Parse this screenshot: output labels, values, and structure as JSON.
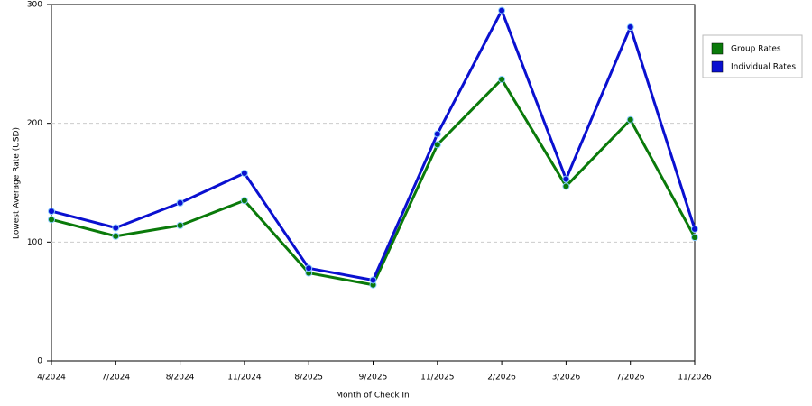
{
  "chart_data": {
    "type": "line",
    "x_label": "Month of Check In",
    "y_label": "Lowest Average Rate (USD)",
    "categories": [
      "4/2024",
      "7/2024",
      "8/2024",
      "11/2024",
      "8/2025",
      "9/2025",
      "11/2025",
      "2/2026",
      "3/2026",
      "7/2026",
      "11/2026"
    ],
    "series": [
      {
        "name": "Group Rates",
        "color": "#0a7a0a",
        "values": [
          119,
          105,
          114,
          135,
          74,
          64,
          182,
          237,
          147,
          203,
          104
        ]
      },
      {
        "name": "Individual Rates",
        "color": "#0a10d0",
        "values": [
          126,
          112,
          133,
          158,
          78,
          68,
          191,
          295,
          153,
          281,
          111
        ]
      }
    ],
    "ylim": [
      0,
      300
    ],
    "yticks": [
      0,
      100,
      200,
      300
    ],
    "grid": true,
    "legend": "right"
  }
}
